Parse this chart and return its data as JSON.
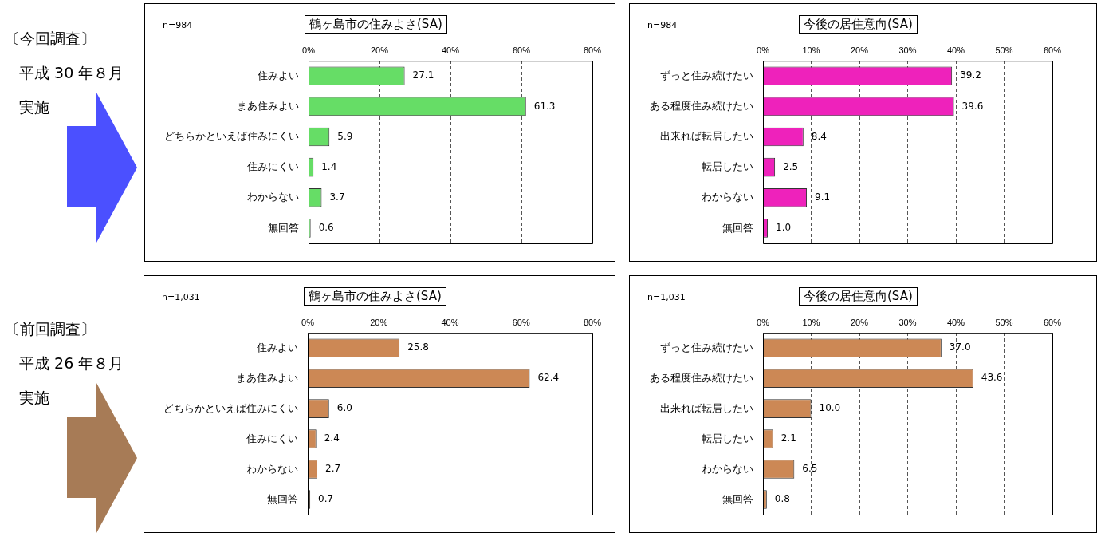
{
  "chart_data": [
    {
      "type": "bar",
      "orientation": "horizontal",
      "title": "鶴ヶ島市の住みよさ(SA)",
      "annotations": [
        "n=984",
        "〔今回調査〕",
        "平成 30 年８月",
        "実施"
      ],
      "categories": [
        "住みよい",
        "まあ住みよい",
        "どちらかといえば住みにくい",
        "住みにくい",
        "わからない",
        "無回答"
      ],
      "values": [
        27.1,
        61.3,
        5.9,
        1.4,
        3.7,
        0.6
      ],
      "color": "#66dd66",
      "xlim": [
        0,
        80
      ],
      "xticks": [
        {
          "value": 0,
          "label": "0%"
        },
        {
          "value": 20,
          "label": "20%"
        },
        {
          "value": 40,
          "label": "40%"
        },
        {
          "value": 60,
          "label": "60%"
        },
        {
          "value": 80,
          "label": "80%"
        }
      ],
      "grid": "x",
      "data_labels": true
    },
    {
      "type": "bar",
      "orientation": "horizontal",
      "title": "今後の居住意向(SA)",
      "annotations": [
        "n=984"
      ],
      "categories": [
        "ずっと住み続けたい",
        "ある程度住み続けたい",
        "出来れば転居したい",
        "転居したい",
        "わからない",
        "無回答"
      ],
      "values": [
        39.2,
        39.6,
        8.4,
        2.5,
        9.1,
        1.0
      ],
      "value_labels": [
        "39.2",
        "39.6",
        "8.4",
        "2.5",
        "9.1",
        "1.0"
      ],
      "color": "#ee22bb",
      "xlim": [
        0,
        60
      ],
      "xticks": [
        {
          "value": 0,
          "label": "0%"
        },
        {
          "value": 10,
          "label": "10%"
        },
        {
          "value": 20,
          "label": "20%"
        },
        {
          "value": 30,
          "label": "30%"
        },
        {
          "value": 40,
          "label": "40%"
        },
        {
          "value": 50,
          "label": "50%"
        },
        {
          "value": 60,
          "label": "60%"
        }
      ],
      "grid": "x"
    },
    {
      "type": "bar",
      "orientation": "horizontal",
      "title": "鶴ヶ島市の住みよさ(SA)",
      "annotations": [
        "n=1,031",
        "〔前回調査〕",
        "平成 26 年８月",
        "実施"
      ],
      "categories": [
        "住みよい",
        "まあ住みよい",
        "どちらかといえば住みにくい",
        "住みにくい",
        "わからない",
        "無回答"
      ],
      "values": [
        25.8,
        62.4,
        6.0,
        2.4,
        2.7,
        0.7
      ],
      "value_labels": [
        "25.8",
        "62.4",
        "6.0",
        "2.4",
        "2.7",
        "0.7"
      ],
      "color": "#cc8855",
      "xlim": [
        0,
        80
      ],
      "xticks": [
        {
          "value": 0,
          "label": "0%"
        },
        {
          "value": 20,
          "label": "20%"
        },
        {
          "value": 40,
          "label": "40%"
        },
        {
          "value": 60,
          "label": "60%"
        },
        {
          "value": 80,
          "label": "80%"
        }
      ],
      "grid": "x"
    },
    {
      "type": "bar",
      "orientation": "horizontal",
      "title": "今後の居住意向(SA)",
      "annotations": [
        "n=1,031"
      ],
      "categories": [
        "ずっと住み続けたい",
        "ある程度住み続けたい",
        "出来れば転居したい",
        "転居したい",
        "わからない",
        "無回答"
      ],
      "values": [
        37.0,
        43.6,
        10.0,
        2.1,
        6.5,
        0.8
      ],
      "value_labels": [
        "37.0",
        "43.6",
        "10.0",
        "2.1",
        "6.5",
        "0.8"
      ],
      "color": "#cc8855",
      "xlim": [
        0,
        60
      ],
      "xticks": [
        {
          "value": 0,
          "label": "0%"
        },
        {
          "value": 10,
          "label": "10%"
        },
        {
          "value": 20,
          "label": "20%"
        },
        {
          "value": 30,
          "label": "30%"
        },
        {
          "value": 40,
          "label": "40%"
        },
        {
          "value": 50,
          "label": "50%"
        },
        {
          "value": 60,
          "label": "60%"
        }
      ],
      "grid": "x"
    }
  ]
}
